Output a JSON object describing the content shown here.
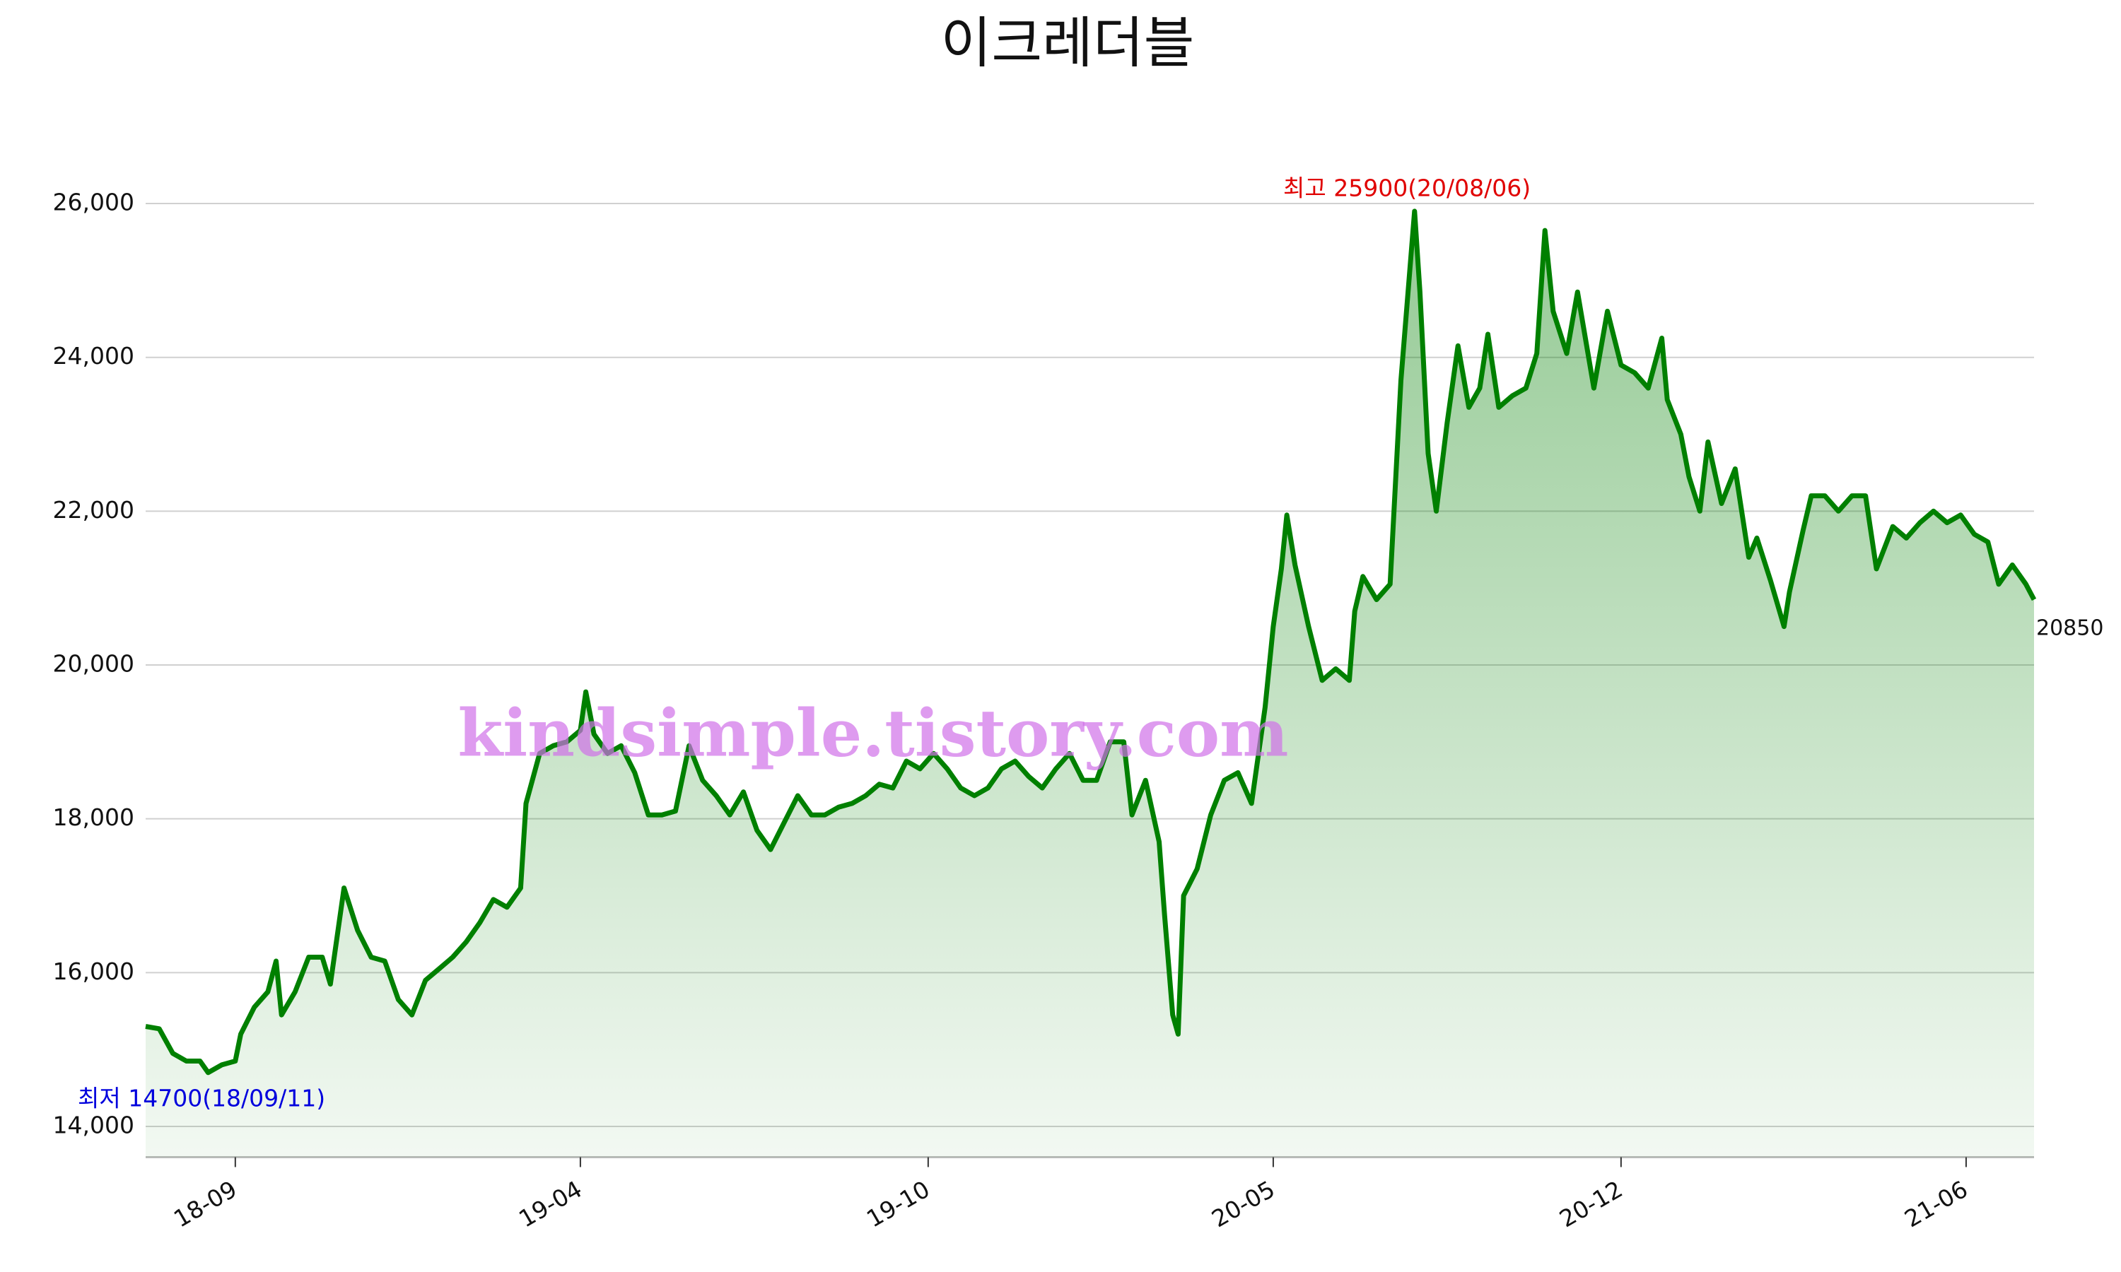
{
  "chart_data": {
    "type": "line",
    "title": "이크레더블",
    "color": "#008000",
    "x": [
      0,
      5,
      10,
      15,
      20,
      23,
      28,
      33,
      35,
      40,
      45,
      48,
      50,
      55,
      60,
      65,
      68,
      73,
      78,
      83,
      88,
      93,
      98,
      103,
      108,
      113,
      118,
      123,
      128,
      133,
      138,
      140,
      145,
      150,
      155,
      160,
      162,
      165,
      170,
      175,
      180,
      185,
      190,
      195,
      200,
      205,
      210,
      215,
      220,
      225,
      230,
      235,
      240,
      245,
      250,
      255,
      260,
      265,
      270,
      275,
      280,
      285,
      290,
      295,
      300,
      305,
      310,
      315,
      320,
      325,
      330,
      335,
      340,
      345,
      350,
      355,
      360,
      363,
      368,
      373,
      375,
      378,
      380,
      382,
      387,
      392,
      397,
      402,
      407,
      412,
      415,
      418,
      420,
      423,
      428,
      433,
      438,
      443,
      445,
      448,
      453,
      458,
      462,
      467,
      469,
      472,
      475,
      479,
      483,
      487,
      491,
      494,
      498,
      503,
      508,
      512,
      515,
      518,
      523,
      527,
      533,
      538,
      543,
      548,
      553,
      558,
      560,
      565,
      568,
      572,
      575,
      580,
      585,
      590,
      593,
      598,
      603,
      605,
      610,
      613,
      618,
      623,
      628,
      633,
      637,
      643,
      648,
      653,
      658,
      663,
      668,
      673,
      678,
      682,
      687,
      692,
      695
    ],
    "values": [
      15300,
      15270,
      14950,
      14850,
      14850,
      14700,
      14800,
      14850,
      15200,
      15550,
      15750,
      16150,
      15450,
      15750,
      16200,
      16200,
      15850,
      17100,
      16550,
      16200,
      16150,
      15650,
      15450,
      15900,
      16050,
      16200,
      16400,
      16650,
      16950,
      16850,
      17100,
      18200,
      18850,
      18950,
      19000,
      19150,
      19650,
      19100,
      18850,
      18950,
      18600,
      18050,
      18050,
      18100,
      18950,
      18500,
      18300,
      18050,
      18350,
      17850,
      17600,
      17950,
      18300,
      18050,
      18050,
      18150,
      18200,
      18300,
      18450,
      18400,
      18750,
      18650,
      18850,
      18650,
      18400,
      18300,
      18400,
      18650,
      18750,
      18550,
      18400,
      18650,
      18850,
      18500,
      18500,
      19000,
      19000,
      18050,
      18500,
      17700,
      16750,
      15450,
      15200,
      17000,
      17350,
      18050,
      18500,
      18600,
      18200,
      19450,
      20500,
      21250,
      21950,
      21300,
      20500,
      19800,
      19950,
      19800,
      20700,
      21150,
      20850,
      21050,
      23700,
      25900,
      24850,
      22750,
      22000,
      23150,
      24150,
      23350,
      23600,
      24300,
      23350,
      23500,
      23600,
      24050,
      25650,
      24600,
      24050,
      24850,
      23600,
      24600,
      23900,
      23800,
      23600,
      24250,
      23450,
      23000,
      22450,
      22000,
      22900,
      22100,
      22550,
      21400,
      21650,
      21100,
      20500,
      20950,
      21750,
      22200,
      22200,
      22000,
      22200,
      22200,
      21250,
      21800,
      21650,
      21850,
      22000,
      21850,
      21950,
      21700,
      21600,
      21050,
      21300,
      21050,
      20850
    ],
    "xlim": [
      0,
      695
    ],
    "xticks": [
      {
        "value": 33,
        "label": "18-09"
      },
      {
        "value": 160,
        "label": "19-04"
      },
      {
        "value": 288,
        "label": "19-10"
      },
      {
        "value": 415,
        "label": "20-05"
      },
      {
        "value": 543,
        "label": "20-12"
      },
      {
        "value": 670,
        "label": "21-06"
      }
    ],
    "ylim": [
      13600,
      26400
    ],
    "yticks": [
      {
        "value": 14000,
        "label": "14,000"
      },
      {
        "value": 16000,
        "label": "16,000"
      },
      {
        "value": 18000,
        "label": "18,000"
      },
      {
        "value": 20000,
        "label": "20,000"
      },
      {
        "value": 22000,
        "label": "22,000"
      },
      {
        "value": 24000,
        "label": "24,000"
      },
      {
        "value": 26000,
        "label": "26,000"
      }
    ],
    "grid": true,
    "annotations": {
      "high": "최고 25900(20/08/06)",
      "low": "최저 14700(18/09/11)",
      "last": "20850",
      "watermark": "kindsimple.tistory.com"
    }
  }
}
